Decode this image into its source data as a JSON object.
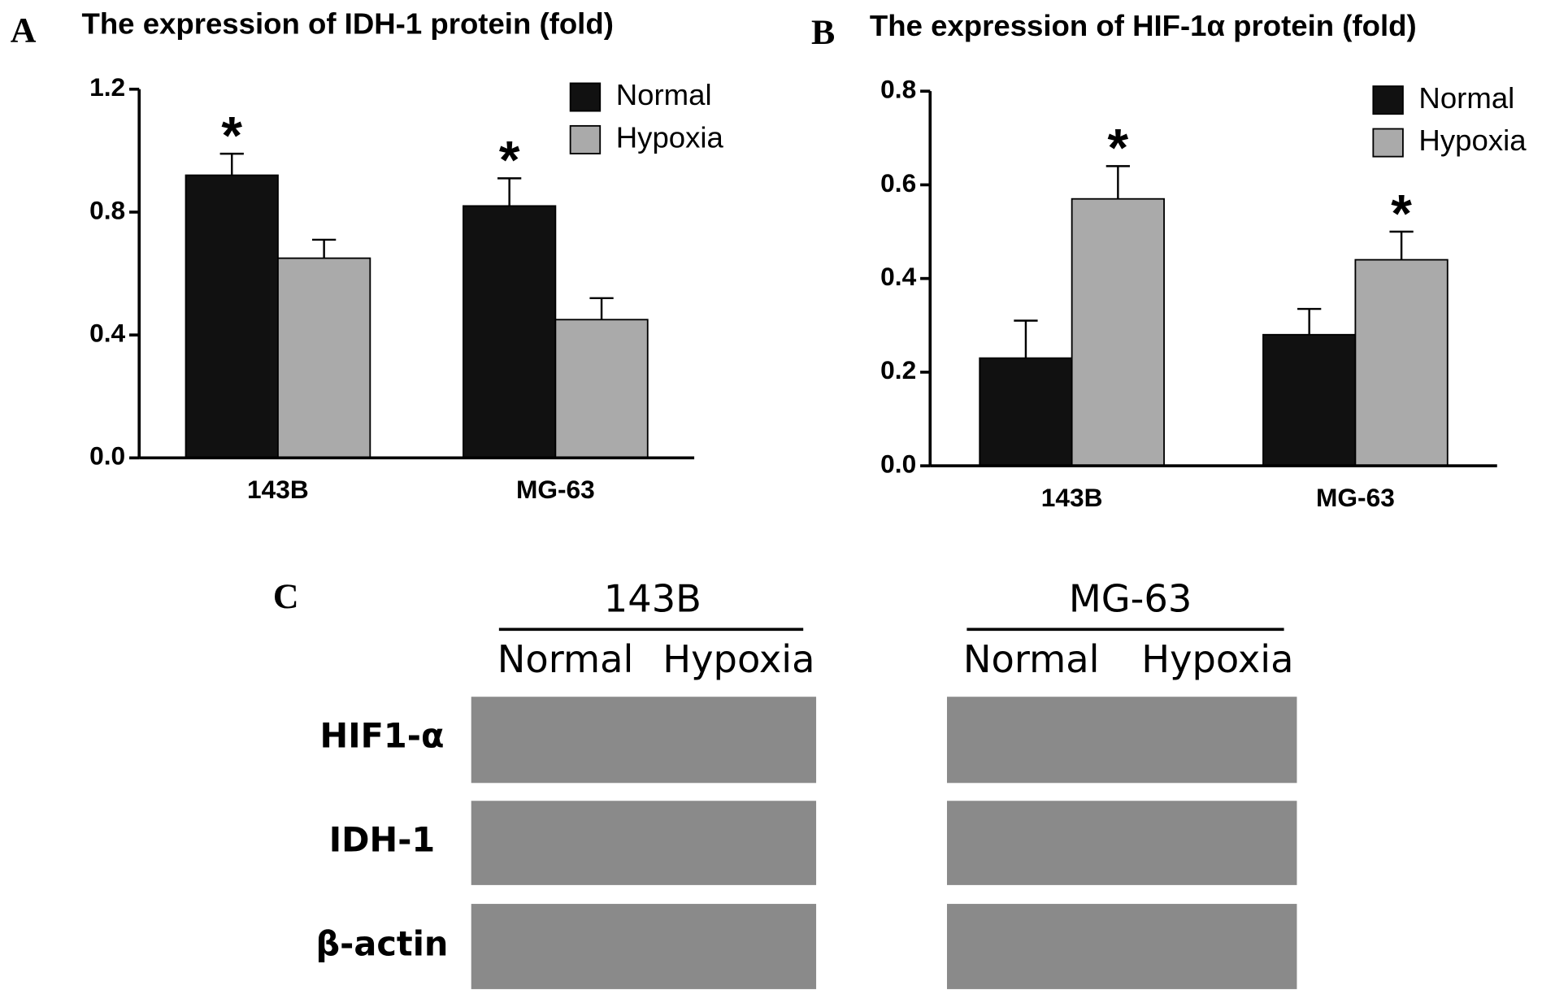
{
  "chart_data": [
    {
      "type": "bar",
      "panel": "A",
      "title": "The expression of IDH-1 protein (fold)",
      "categories": [
        "143B",
        "MG-63"
      ],
      "series": [
        {
          "name": "Normal",
          "color": "#111111",
          "values": [
            0.92,
            0.82
          ],
          "errors": [
            0.07,
            0.09
          ],
          "significance": [
            "*",
            "*"
          ]
        },
        {
          "name": "Hypoxia",
          "color": "#aaaaaa",
          "values": [
            0.65,
            0.45
          ],
          "errors": [
            0.06,
            0.07
          ],
          "significance": [
            null,
            null
          ]
        }
      ],
      "ylim": [
        0,
        1.2
      ],
      "yticks": [
        {
          "value": 0,
          "label": "0.0"
        },
        0.4,
        0.8,
        1.2
      ],
      "legend": "top-right"
    },
    {
      "type": "bar",
      "panel": "B",
      "title": "The expression of HIF-1α protein (fold)",
      "categories": [
        "143B",
        "MG-63"
      ],
      "series": [
        {
          "name": "Normal",
          "color": "#111111",
          "values": [
            0.23,
            0.28
          ],
          "errors": [
            0.08,
            0.055
          ],
          "significance": [
            null,
            null
          ]
        },
        {
          "name": "Hypoxia",
          "color": "#aaaaaa",
          "values": [
            0.57,
            0.44
          ],
          "errors": [
            0.07,
            0.06
          ],
          "significance": [
            "*",
            "*"
          ]
        }
      ],
      "ylim": [
        0,
        0.8
      ],
      "yticks": [
        {
          "value": 0,
          "label": "0.0"
        },
        0.2,
        0.4,
        0.6,
        0.8
      ],
      "legend": "top-right"
    }
  ],
  "blot": {
    "panel": "C",
    "groups": [
      {
        "name": "143B",
        "lanes": [
          "Normal",
          "Hypoxia"
        ]
      },
      {
        "name": "MG-63",
        "lanes": [
          "Normal",
          "Hypoxia"
        ]
      }
    ],
    "rows": [
      "HIF1-α",
      "IDH-1",
      "β-actin"
    ]
  }
}
